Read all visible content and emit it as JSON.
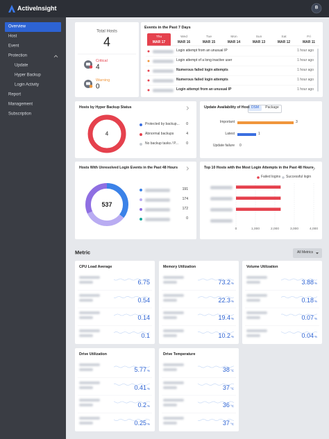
{
  "header": {
    "brand": "ActiveInsight",
    "avatar": "B"
  },
  "sidebar": {
    "active": 0,
    "items": [
      {
        "label": "Overview",
        "sub": false
      },
      {
        "label": "Host",
        "sub": false
      },
      {
        "label": "Event",
        "sub": false
      },
      {
        "label": "Protection",
        "sub": false,
        "expandable": true
      },
      {
        "label": "Update",
        "sub": true
      },
      {
        "label": "Hyper Backup",
        "sub": true
      },
      {
        "label": "Login Activity",
        "sub": true
      },
      {
        "label": "Report",
        "sub": false
      },
      {
        "label": "Management",
        "sub": false
      },
      {
        "label": "Subscription",
        "sub": false
      }
    ]
  },
  "summary": {
    "title": "Total Hosts",
    "total": 4,
    "critical": {
      "label": "Critical",
      "value": 4,
      "color": "#e5414d"
    },
    "warning": {
      "label": "Warning",
      "value": 0,
      "color": "#f0963c"
    }
  },
  "events": {
    "title": "Events in the Past 7 Days",
    "active_day": 0,
    "days": [
      {
        "weekday": "Thu",
        "date": "MAR 17"
      },
      {
        "weekday": "Wed",
        "date": "MAR 16"
      },
      {
        "weekday": "Tue",
        "date": "MAR 15"
      },
      {
        "weekday": "Mon",
        "date": "MAR 14"
      },
      {
        "weekday": "Sun",
        "date": "MAR 13"
      },
      {
        "weekday": "Sat",
        "date": "MAR 12"
      },
      {
        "weekday": "Fri",
        "date": "MAR 11"
      }
    ],
    "items": [
      {
        "text": "Login attempt from an unusual IP",
        "time": "1 hour ago",
        "color": "#e5414d",
        "bold": false
      },
      {
        "text": "Login attempt of a long inactive user",
        "time": "1 hour ago",
        "color": "#f0963c",
        "bold": false
      },
      {
        "text": "Numerous failed login attempts",
        "time": "1 hour ago",
        "color": "#e5414d",
        "bold": true
      },
      {
        "text": "Numerous failed login attempts",
        "time": "1 hour ago",
        "color": "#e5414d",
        "bold": true
      },
      {
        "text": "Login attempt from an unusual IP",
        "time": "1 hour ago",
        "color": "#e5414d",
        "bold": true
      }
    ]
  },
  "chart_data": [
    {
      "type": "donut",
      "title": "Hosts by Hyper Backup Status",
      "categories": [
        "Protected by backup...",
        "Abnormal backups",
        "No backup tasks / P..."
      ],
      "values": [
        0,
        4,
        0
      ],
      "colors": [
        "#3b6fe0",
        "#e5414d",
        "#c8ccd2"
      ],
      "total": 4
    },
    {
      "type": "hbar",
      "title": "Update Availability of Host",
      "toggle": [
        "DSM",
        "Package"
      ],
      "active_toggle": 0,
      "categories": [
        "Important",
        "Latest",
        "Update failure"
      ],
      "values": [
        3,
        1,
        0
      ],
      "colors": [
        "#f0963c",
        "#3b6fe0",
        "#3b6fe0"
      ]
    },
    {
      "type": "donut",
      "title": "Hosts With Unresolved Login Events in the Past 48 Hours",
      "categories": [
        null,
        null,
        null,
        null
      ],
      "values": [
        191,
        174,
        172,
        0
      ],
      "colors": [
        "#3b82e8",
        "#b9acf2",
        "#8f6fe2",
        "#14a89a"
      ],
      "total": 537
    },
    {
      "type": "hbar_grouped",
      "title": "Top 10 Hosts with the Most Login Attempts in the Past 48 Hours",
      "categories": [
        null,
        null,
        null,
        null
      ],
      "series": [
        {
          "name": "Failed logins",
          "color": "#e5414d",
          "values": [
            2300,
            2300,
            2300,
            0
          ]
        },
        {
          "name": "Successful login",
          "color": "#c8ccd2",
          "values": [
            0,
            0,
            0,
            0
          ]
        }
      ],
      "xlim": [
        0,
        4000
      ],
      "xticks": [
        0,
        {
          "value": 1000,
          "label": "1,000"
        },
        {
          "value": 2000,
          "label": "2,000"
        },
        {
          "value": 3000,
          "label": "3,000"
        },
        {
          "value": 4000,
          "label": "4,000"
        }
      ],
      "grid": true
    }
  ],
  "metrics": {
    "title": "Metric",
    "filter": "All Metrics",
    "cards": [
      {
        "title": "CPU Load Average",
        "values": [
          6.75,
          0.54,
          0.14,
          0.1
        ]
      },
      {
        "title": "Memory Utilization",
        "unit": "%",
        "values": [
          73.2,
          22.3,
          19.4,
          10.2
        ]
      },
      {
        "title": "Volume Utilization",
        "unit": "%",
        "values": [
          3.88,
          0.18,
          0.07,
          0.04
        ]
      },
      {
        "title": "Drive Utilization",
        "unit": "%",
        "values": [
          5.77,
          0.41,
          0.2,
          0.25
        ]
      },
      {
        "title": "Drive Temperature",
        "unit": "°C",
        "values": [
          38,
          37,
          36,
          37
        ]
      }
    ]
  }
}
